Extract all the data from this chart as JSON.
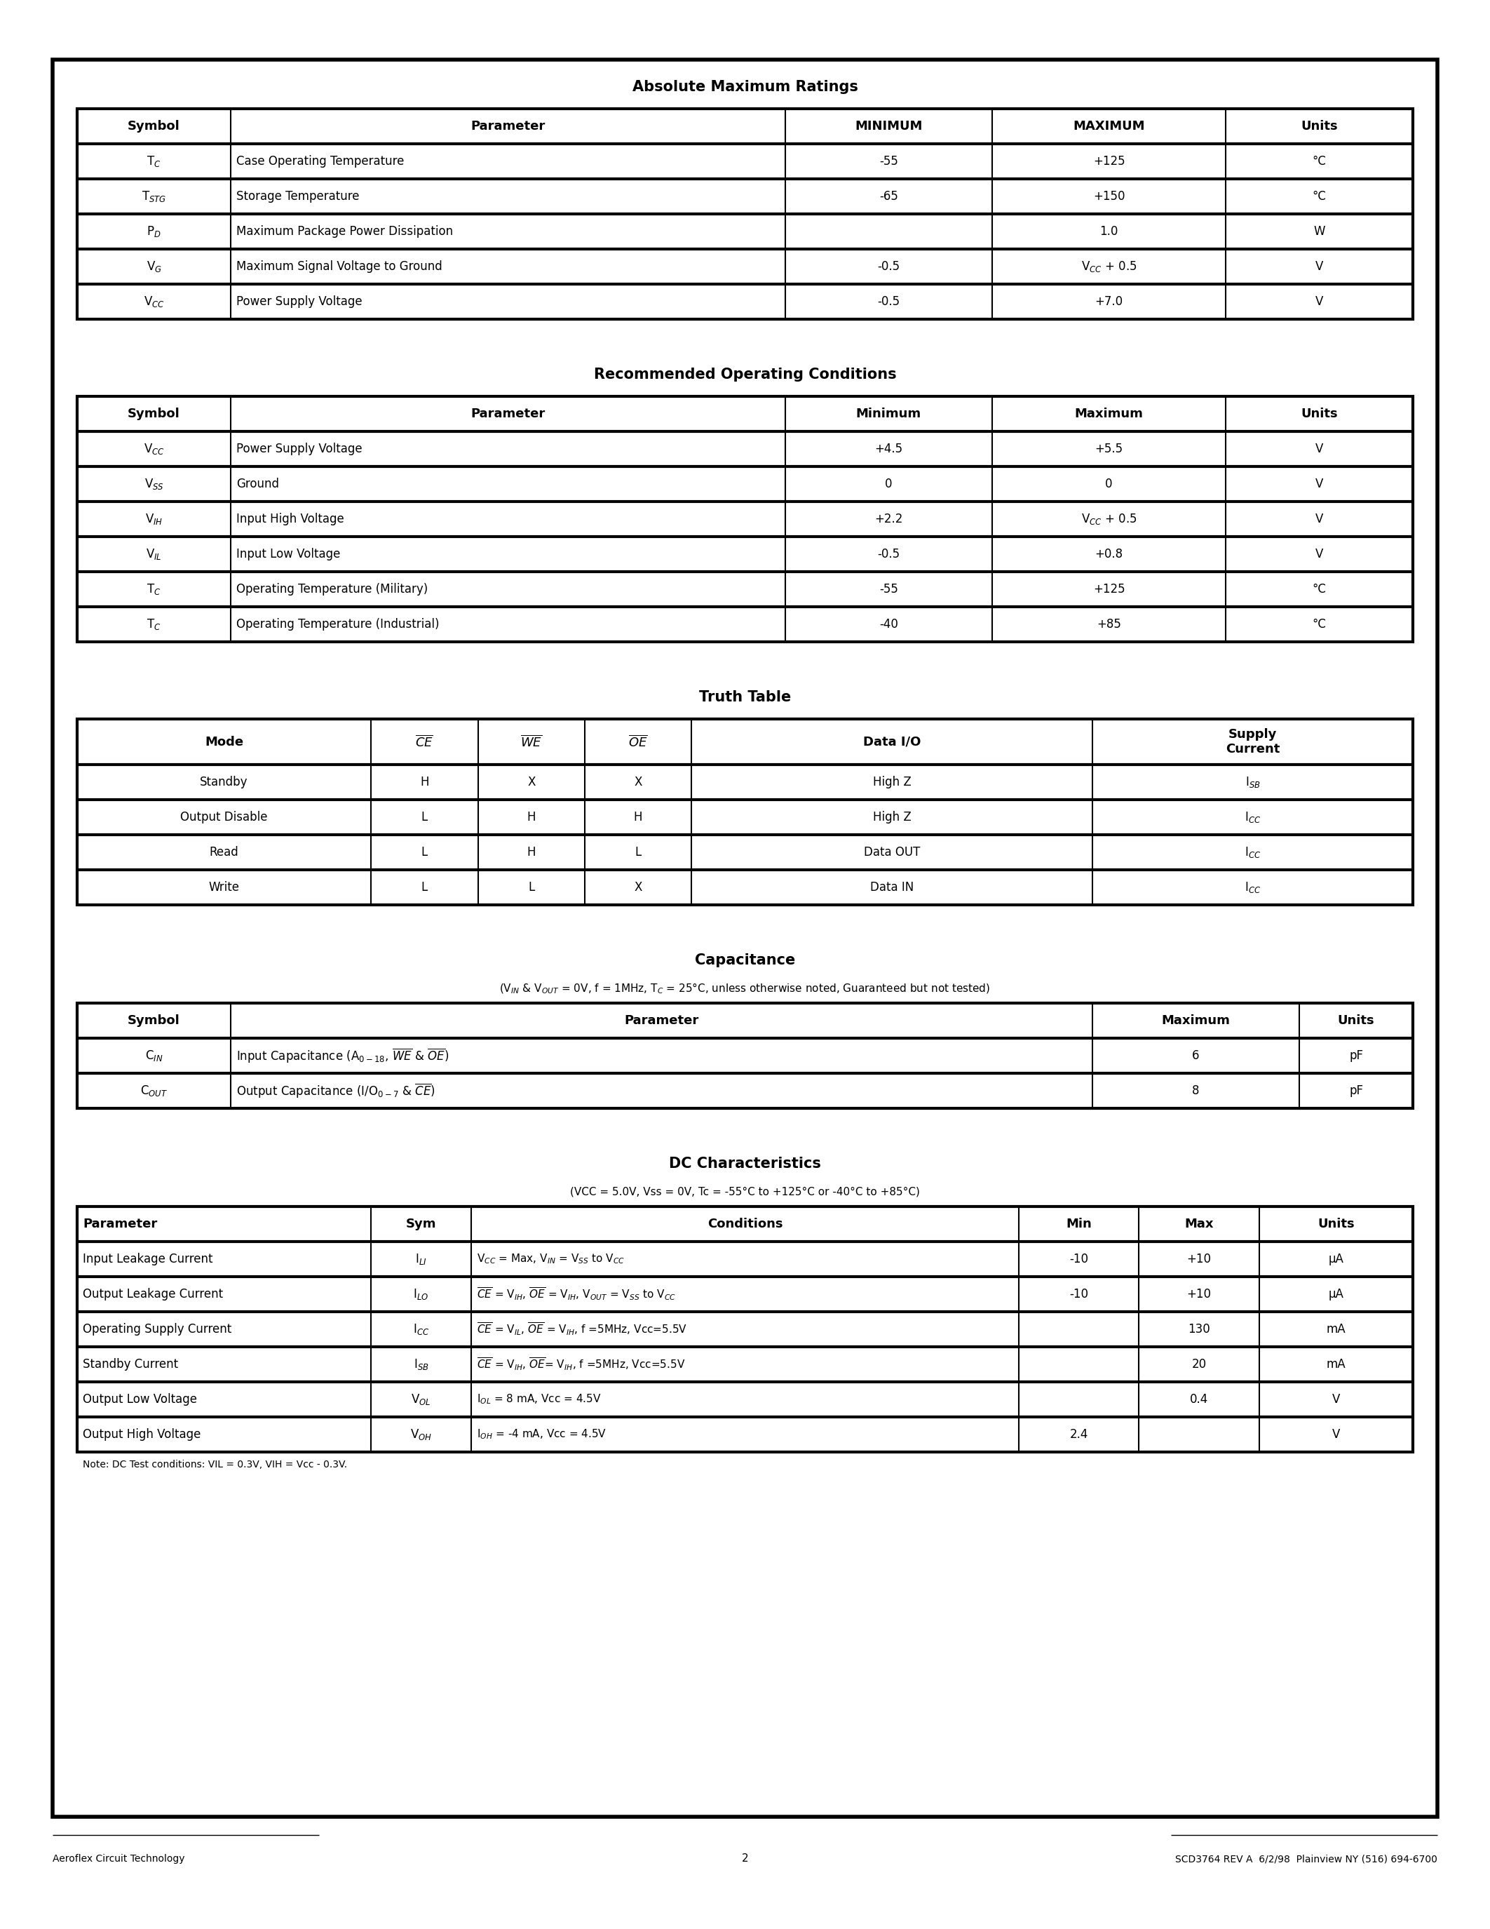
{
  "page_bg": "#ffffff",
  "section1_title": "Absolute Maximum Ratings",
  "abs_max_headers": [
    "Symbol",
    "Parameter",
    "MINIMUM",
    "MAXIMUM",
    "Units"
  ],
  "abs_max_rows": [
    [
      "T$_C$",
      "Case Operating Temperature",
      "-55",
      "+125",
      "°C"
    ],
    [
      "T$_{STG}$",
      "Storage Temperature",
      "-65",
      "+150",
      "°C"
    ],
    [
      "P$_D$",
      "Maximum Package Power Dissipation",
      "",
      "1.0",
      "W"
    ],
    [
      "V$_G$",
      "Maximum Signal Voltage to Ground",
      "-0.5",
      "V$_{CC}$ + 0.5",
      "V"
    ],
    [
      "V$_{CC}$",
      "Power Supply Voltage",
      "-0.5",
      "+7.0",
      "V"
    ]
  ],
  "section2_title": "Recommended Operating Conditions",
  "rec_op_headers": [
    "Symbol",
    "Parameter",
    "Minimum",
    "Maximum",
    "Units"
  ],
  "rec_op_rows": [
    [
      "V$_{CC}$",
      "Power Supply Voltage",
      "+4.5",
      "+5.5",
      "V"
    ],
    [
      "V$_{SS}$",
      "Ground",
      "0",
      "0",
      "V"
    ],
    [
      "V$_{IH}$",
      "Input High Voltage",
      "+2.2",
      "V$_{CC}$ + 0.5",
      "V"
    ],
    [
      "V$_{IL}$",
      "Input Low Voltage",
      "-0.5",
      "+0.8",
      "V"
    ],
    [
      "T$_C$",
      "Operating Temperature (Military)",
      "-55",
      "+125",
      "°C"
    ],
    [
      "T$_C$",
      "Operating Temperature (Industrial)",
      "-40",
      "+85",
      "°C"
    ]
  ],
  "section3_title": "Truth Table",
  "truth_rows": [
    [
      "Standby",
      "H",
      "X",
      "X",
      "High Z",
      "I$_{SB}$"
    ],
    [
      "Output Disable",
      "L",
      "H",
      "H",
      "High Z",
      "I$_{CC}$"
    ],
    [
      "Read",
      "L",
      "H",
      "L",
      "Data OUT",
      "I$_{CC}$"
    ],
    [
      "Write",
      "L",
      "L",
      "X",
      "Data IN",
      "I$_{CC}$"
    ]
  ],
  "section4_title": "Capacitance",
  "cap_subtitle": "(V$_{IN}$ & V$_{OUT}$ = 0V, f = 1MHz, T$_C$ = 25°C, unless otherwise noted, Guaranteed but not tested)",
  "cap_headers": [
    "Symbol",
    "Parameter",
    "Maximum",
    "Units"
  ],
  "cap_rows": [
    [
      "C$_{IN}$",
      "Input Capacitance (A$_{0-18}$, $\\overline{WE}$ & $\\overline{OE}$)",
      "6",
      "pF"
    ],
    [
      "C$_{OUT}$",
      "Output Capacitance (I/O$_{0-7}$ & $\\overline{CE}$)",
      "8",
      "pF"
    ]
  ],
  "section5_title": "DC Characteristics",
  "dc_subtitle": "(VCC = 5.0V, Vss = 0V, Tc = -55°C to +125°C or -40°C to +85°C)",
  "dc_headers": [
    "Parameter",
    "Sym",
    "Conditions",
    "Min",
    "Max",
    "Units"
  ],
  "dc_rows": [
    [
      "Input Leakage Current",
      "I$_{LI}$",
      "V$_{CC}$ = Max, V$_{IN}$ = V$_{SS}$ to V$_{CC}$",
      "-10",
      "+10",
      "μA"
    ],
    [
      "Output Leakage Current",
      "I$_{LO}$",
      "$\\overline{CE}$ = V$_{IH}$, $\\overline{OE}$ = V$_{IH}$, V$_{OUT}$ = V$_{SS}$ to V$_{CC}$",
      "-10",
      "+10",
      "μA"
    ],
    [
      "Operating Supply Current",
      "I$_{CC}$",
      "$\\overline{CE}$ = V$_{IL}$, $\\overline{OE}$ = V$_{IH}$, f =5MHz, Vcc=5.5V",
      "",
      "130",
      "mA"
    ],
    [
      "Standby Current",
      "I$_{SB}$",
      "$\\overline{CE}$ = V$_{IH}$, $\\overline{OE}$= V$_{IH}$, f =5MHz, Vcc=5.5V",
      "",
      "20",
      "mA"
    ],
    [
      "Output Low Voltage",
      "V$_{OL}$",
      "I$_{OL}$ = 8 mA, Vcc = 4.5V",
      "",
      "0.4",
      "V"
    ],
    [
      "Output High Voltage",
      "V$_{OH}$",
      "I$_{OH}$ = -4 mA, Vcc = 4.5V",
      "2.4",
      "",
      "V"
    ]
  ],
  "dc_note": "Note: DC Test conditions: VIL = 0.3V, VIH = Vcc - 0.3V.",
  "footer_left": "Aeroflex Circuit Technology",
  "footer_center": "2",
  "footer_right": "SCD3764 REV A  6/2/98  Plainview NY (516) 694-6700"
}
